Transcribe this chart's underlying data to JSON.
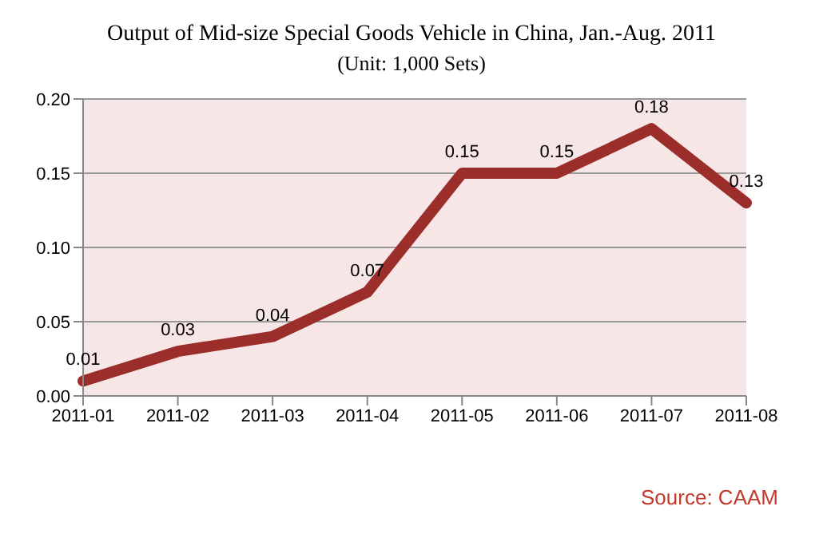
{
  "chart_data": {
    "type": "line",
    "title": "Output of Mid-size Special Goods Vehicle in China, Jan.-Aug. 2011",
    "subtitle": "(Unit: 1,000 Sets)",
    "categories": [
      "2011-01",
      "2011-02",
      "2011-03",
      "2011-04",
      "2011-05",
      "2011-06",
      "2011-07",
      "2011-08"
    ],
    "series": [
      {
        "color": "#9b2d2a",
        "values": [
          0.01,
          0.03,
          0.04,
          0.07,
          0.15,
          0.15,
          0.18,
          0.13
        ]
      }
    ],
    "ylim": [
      0,
      0.2
    ],
    "yticks": [
      {
        "value": 0,
        "label": "0.00"
      },
      {
        "value": 0.05,
        "label": "0.05"
      },
      {
        "value": 0.1,
        "label": "0.10"
      },
      {
        "value": 0.15,
        "label": "0.15"
      },
      {
        "value": 0.2,
        "label": "0.20"
      }
    ],
    "grid": "y",
    "data_labels": true,
    "marker": "none",
    "line_style": "solid",
    "annotations": [
      "Source:  CAAM"
    ]
  }
}
